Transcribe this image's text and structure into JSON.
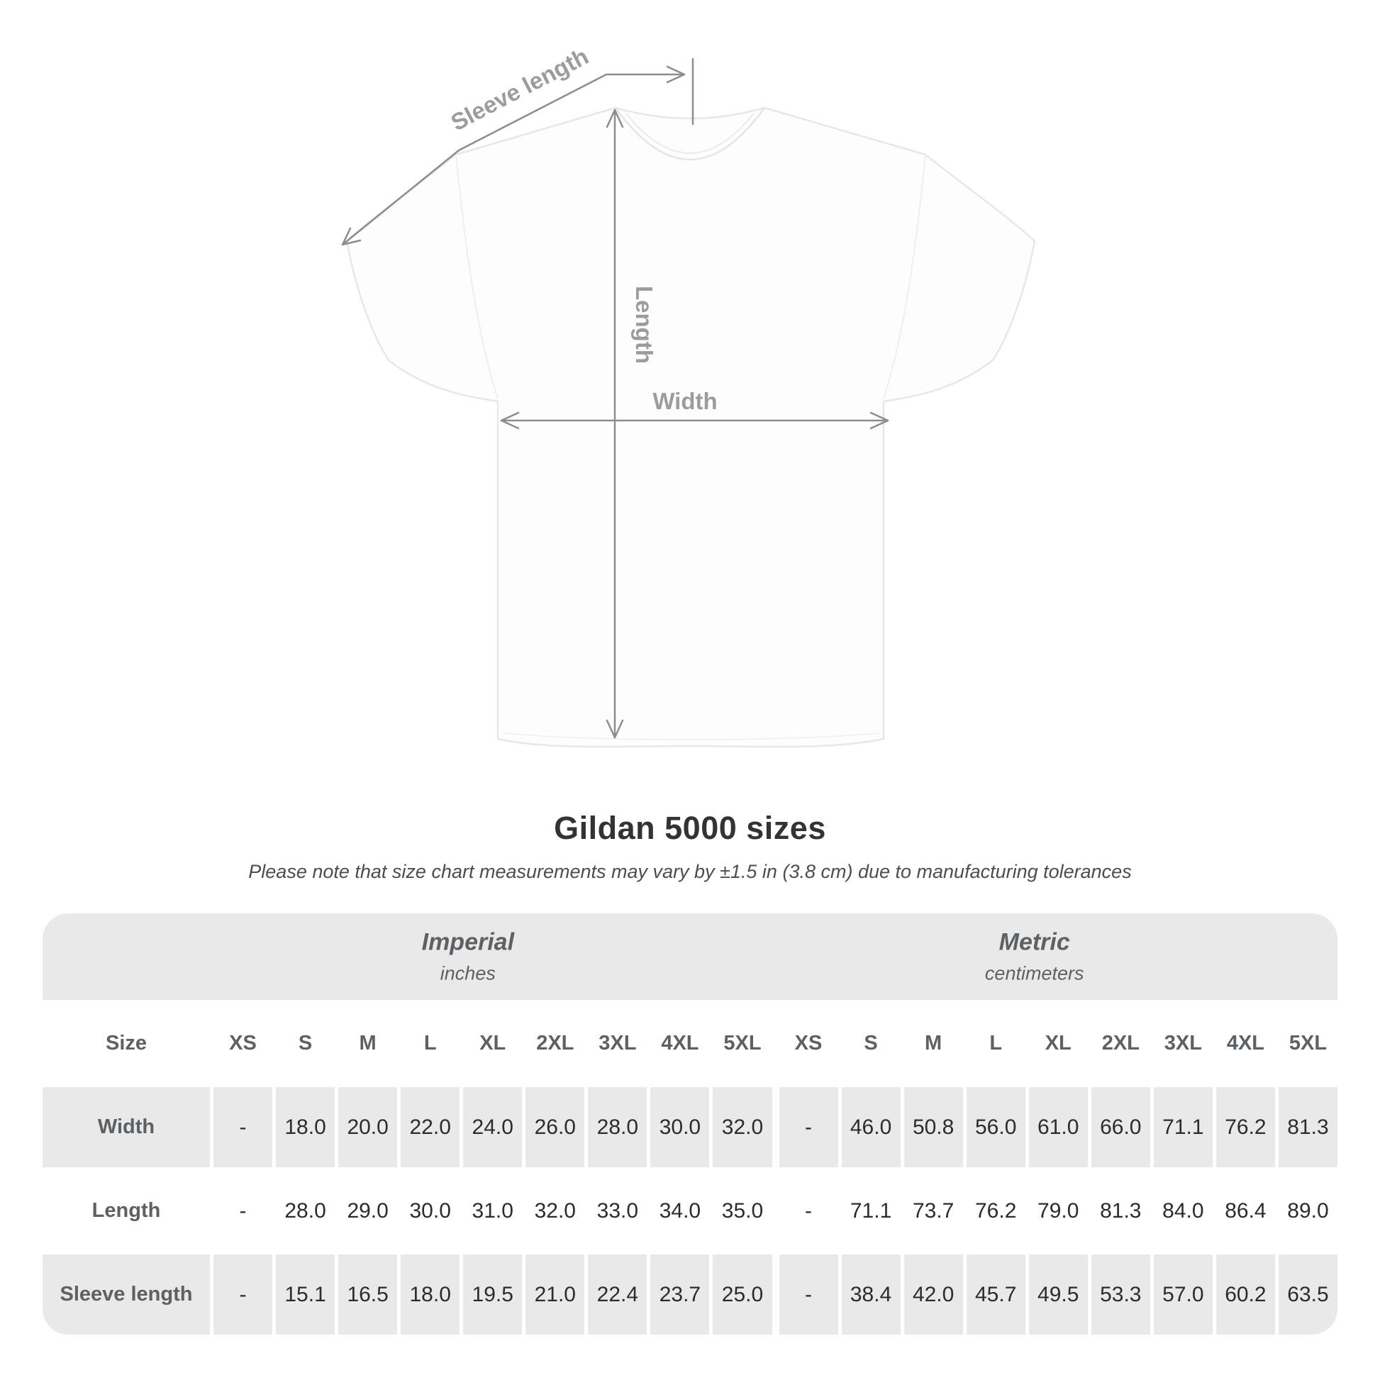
{
  "chart_data": {
    "type": "table",
    "title": "Gildan 5000 sizes",
    "note": "Please note that size chart measurements may vary by ±1.5 in (3.8 cm) due to manufacturing tolerances",
    "diagram_labels": {
      "sleeve_length": "Sleeve length",
      "length": "Length",
      "width": "Width"
    },
    "size_header": "Size",
    "unit_groups": [
      {
        "label": "Imperial",
        "sublabel": "inches"
      },
      {
        "label": "Metric",
        "sublabel": "centimeters"
      }
    ],
    "size_columns": [
      "XS",
      "S",
      "M",
      "L",
      "XL",
      "2XL",
      "3XL",
      "4XL",
      "5XL"
    ],
    "rows": [
      {
        "label": "Width",
        "imperial": [
          "-",
          "18.0",
          "20.0",
          "22.0",
          "24.0",
          "26.0",
          "28.0",
          "30.0",
          "32.0"
        ],
        "metric": [
          "-",
          "46.0",
          "50.8",
          "56.0",
          "61.0",
          "66.0",
          "71.1",
          "76.2",
          "81.3"
        ]
      },
      {
        "label": "Length",
        "imperial": [
          "-",
          "28.0",
          "29.0",
          "30.0",
          "31.0",
          "32.0",
          "33.0",
          "34.0",
          "35.0"
        ],
        "metric": [
          "-",
          "71.1",
          "73.7",
          "76.2",
          "79.0",
          "81.3",
          "84.0",
          "86.4",
          "89.0"
        ]
      },
      {
        "label": "Sleeve length",
        "imperial": [
          "-",
          "15.1",
          "16.5",
          "18.0",
          "19.5",
          "21.0",
          "22.4",
          "23.7",
          "25.0"
        ],
        "metric": [
          "-",
          "38.4",
          "42.0",
          "45.7",
          "49.5",
          "53.3",
          "57.0",
          "60.2",
          "63.5"
        ]
      }
    ],
    "colors": {
      "table_shade": "#e9e9e9",
      "header_text": "#5b6165",
      "value_text": "#2c2c2c",
      "diagram_line": "#8d8d8d",
      "diagram_label": "#9c9c9c",
      "title_text": "#333333"
    }
  }
}
